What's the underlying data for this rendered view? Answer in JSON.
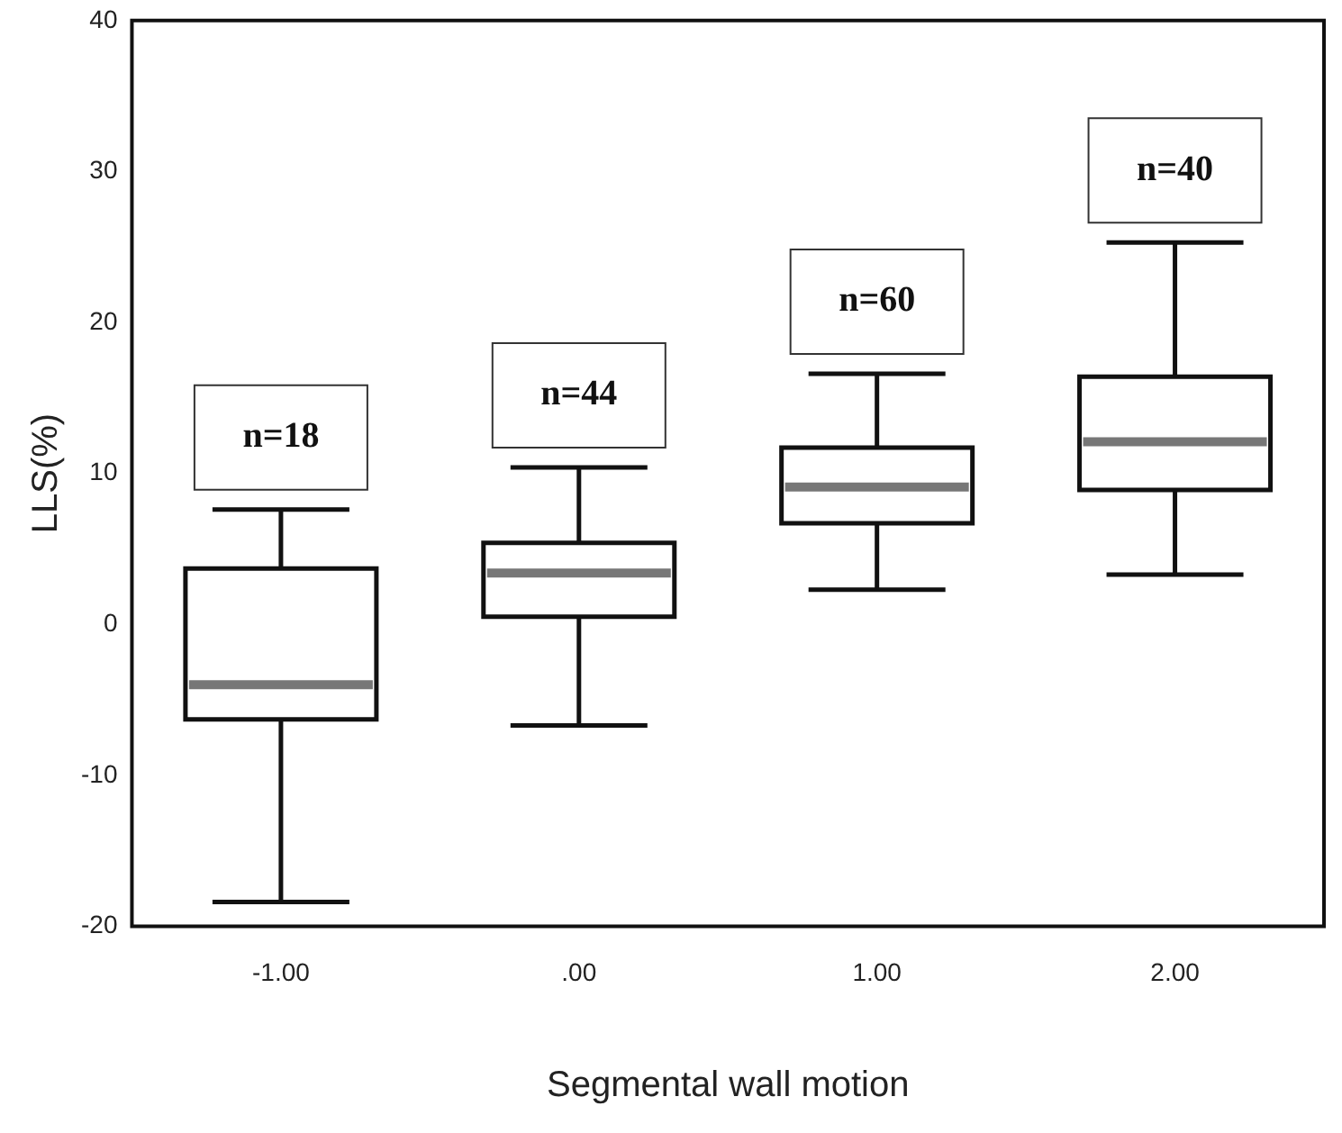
{
  "chart_data": {
    "type": "box",
    "xlabel": "Segmental wall motion",
    "ylabel": "LLS(%)",
    "categories": [
      "-1.00",
      ".00",
      "1.00",
      "2.00"
    ],
    "boxes": [
      {
        "low": -18.4,
        "q1": -6.3,
        "median": -4.0,
        "q3": 3.7,
        "high": 7.6
      },
      {
        "low": -6.7,
        "q1": 0.5,
        "median": 3.4,
        "q3": 5.4,
        "high": 10.4
      },
      {
        "low": 2.3,
        "q1": 6.7,
        "median": 9.1,
        "q3": 11.7,
        "high": 16.6
      },
      {
        "low": 3.3,
        "q1": 8.9,
        "median": 12.1,
        "q3": 16.4,
        "high": 25.3
      }
    ],
    "ylim": [
      -20,
      40
    ],
    "yticks": [
      -20,
      -10,
      0,
      10,
      20,
      30,
      40
    ],
    "annotations": [
      "n=18",
      "n=44",
      "n=60",
      "n=40"
    ]
  }
}
